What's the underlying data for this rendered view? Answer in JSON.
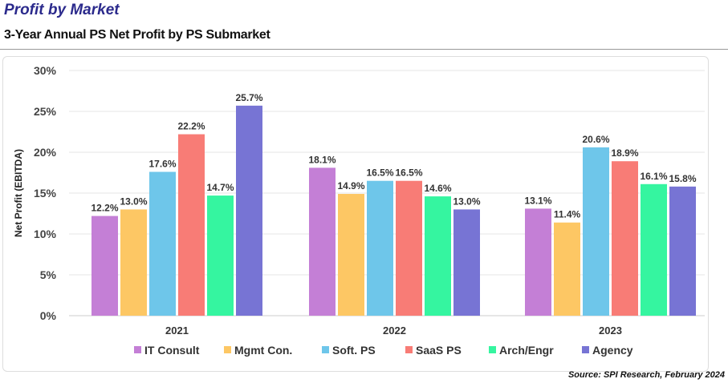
{
  "header": {
    "title": "Profit by Market",
    "subtitle": "3-Year Annual PS Net Profit by PS Submarket"
  },
  "source": "Source: SPI Research, February 2024",
  "chart_data": {
    "type": "bar",
    "title": "3-Year Annual PS Net Profit by PS Submarket",
    "xlabel": "",
    "ylabel": "Net Profit (EBITDA)",
    "ylim": [
      0,
      30
    ],
    "yticks": [
      "0%",
      "5%",
      "10%",
      "15%",
      "20%",
      "25%",
      "30%"
    ],
    "grid": true,
    "legend": "bottom",
    "categories": [
      "2021",
      "2022",
      "2023"
    ],
    "series": [
      {
        "name": "IT Consult",
        "color": "#c47fd6",
        "values": [
          12.2,
          18.1,
          13.1
        ]
      },
      {
        "name": "Mgmt Con.",
        "color": "#fdc764",
        "values": [
          13.0,
          14.9,
          11.4
        ]
      },
      {
        "name": "Soft. PS",
        "color": "#6ec6ea",
        "values": [
          17.6,
          16.5,
          20.6
        ]
      },
      {
        "name": "SaaS PS",
        "color": "#f87c76",
        "values": [
          22.2,
          16.5,
          18.9
        ]
      },
      {
        "name": "Arch/Engr",
        "color": "#35f5a0",
        "values": [
          14.7,
          14.6,
          16.1
        ]
      },
      {
        "name": "Agency",
        "color": "#7774d4",
        "values": [
          25.7,
          13.0,
          15.8
        ]
      }
    ]
  }
}
